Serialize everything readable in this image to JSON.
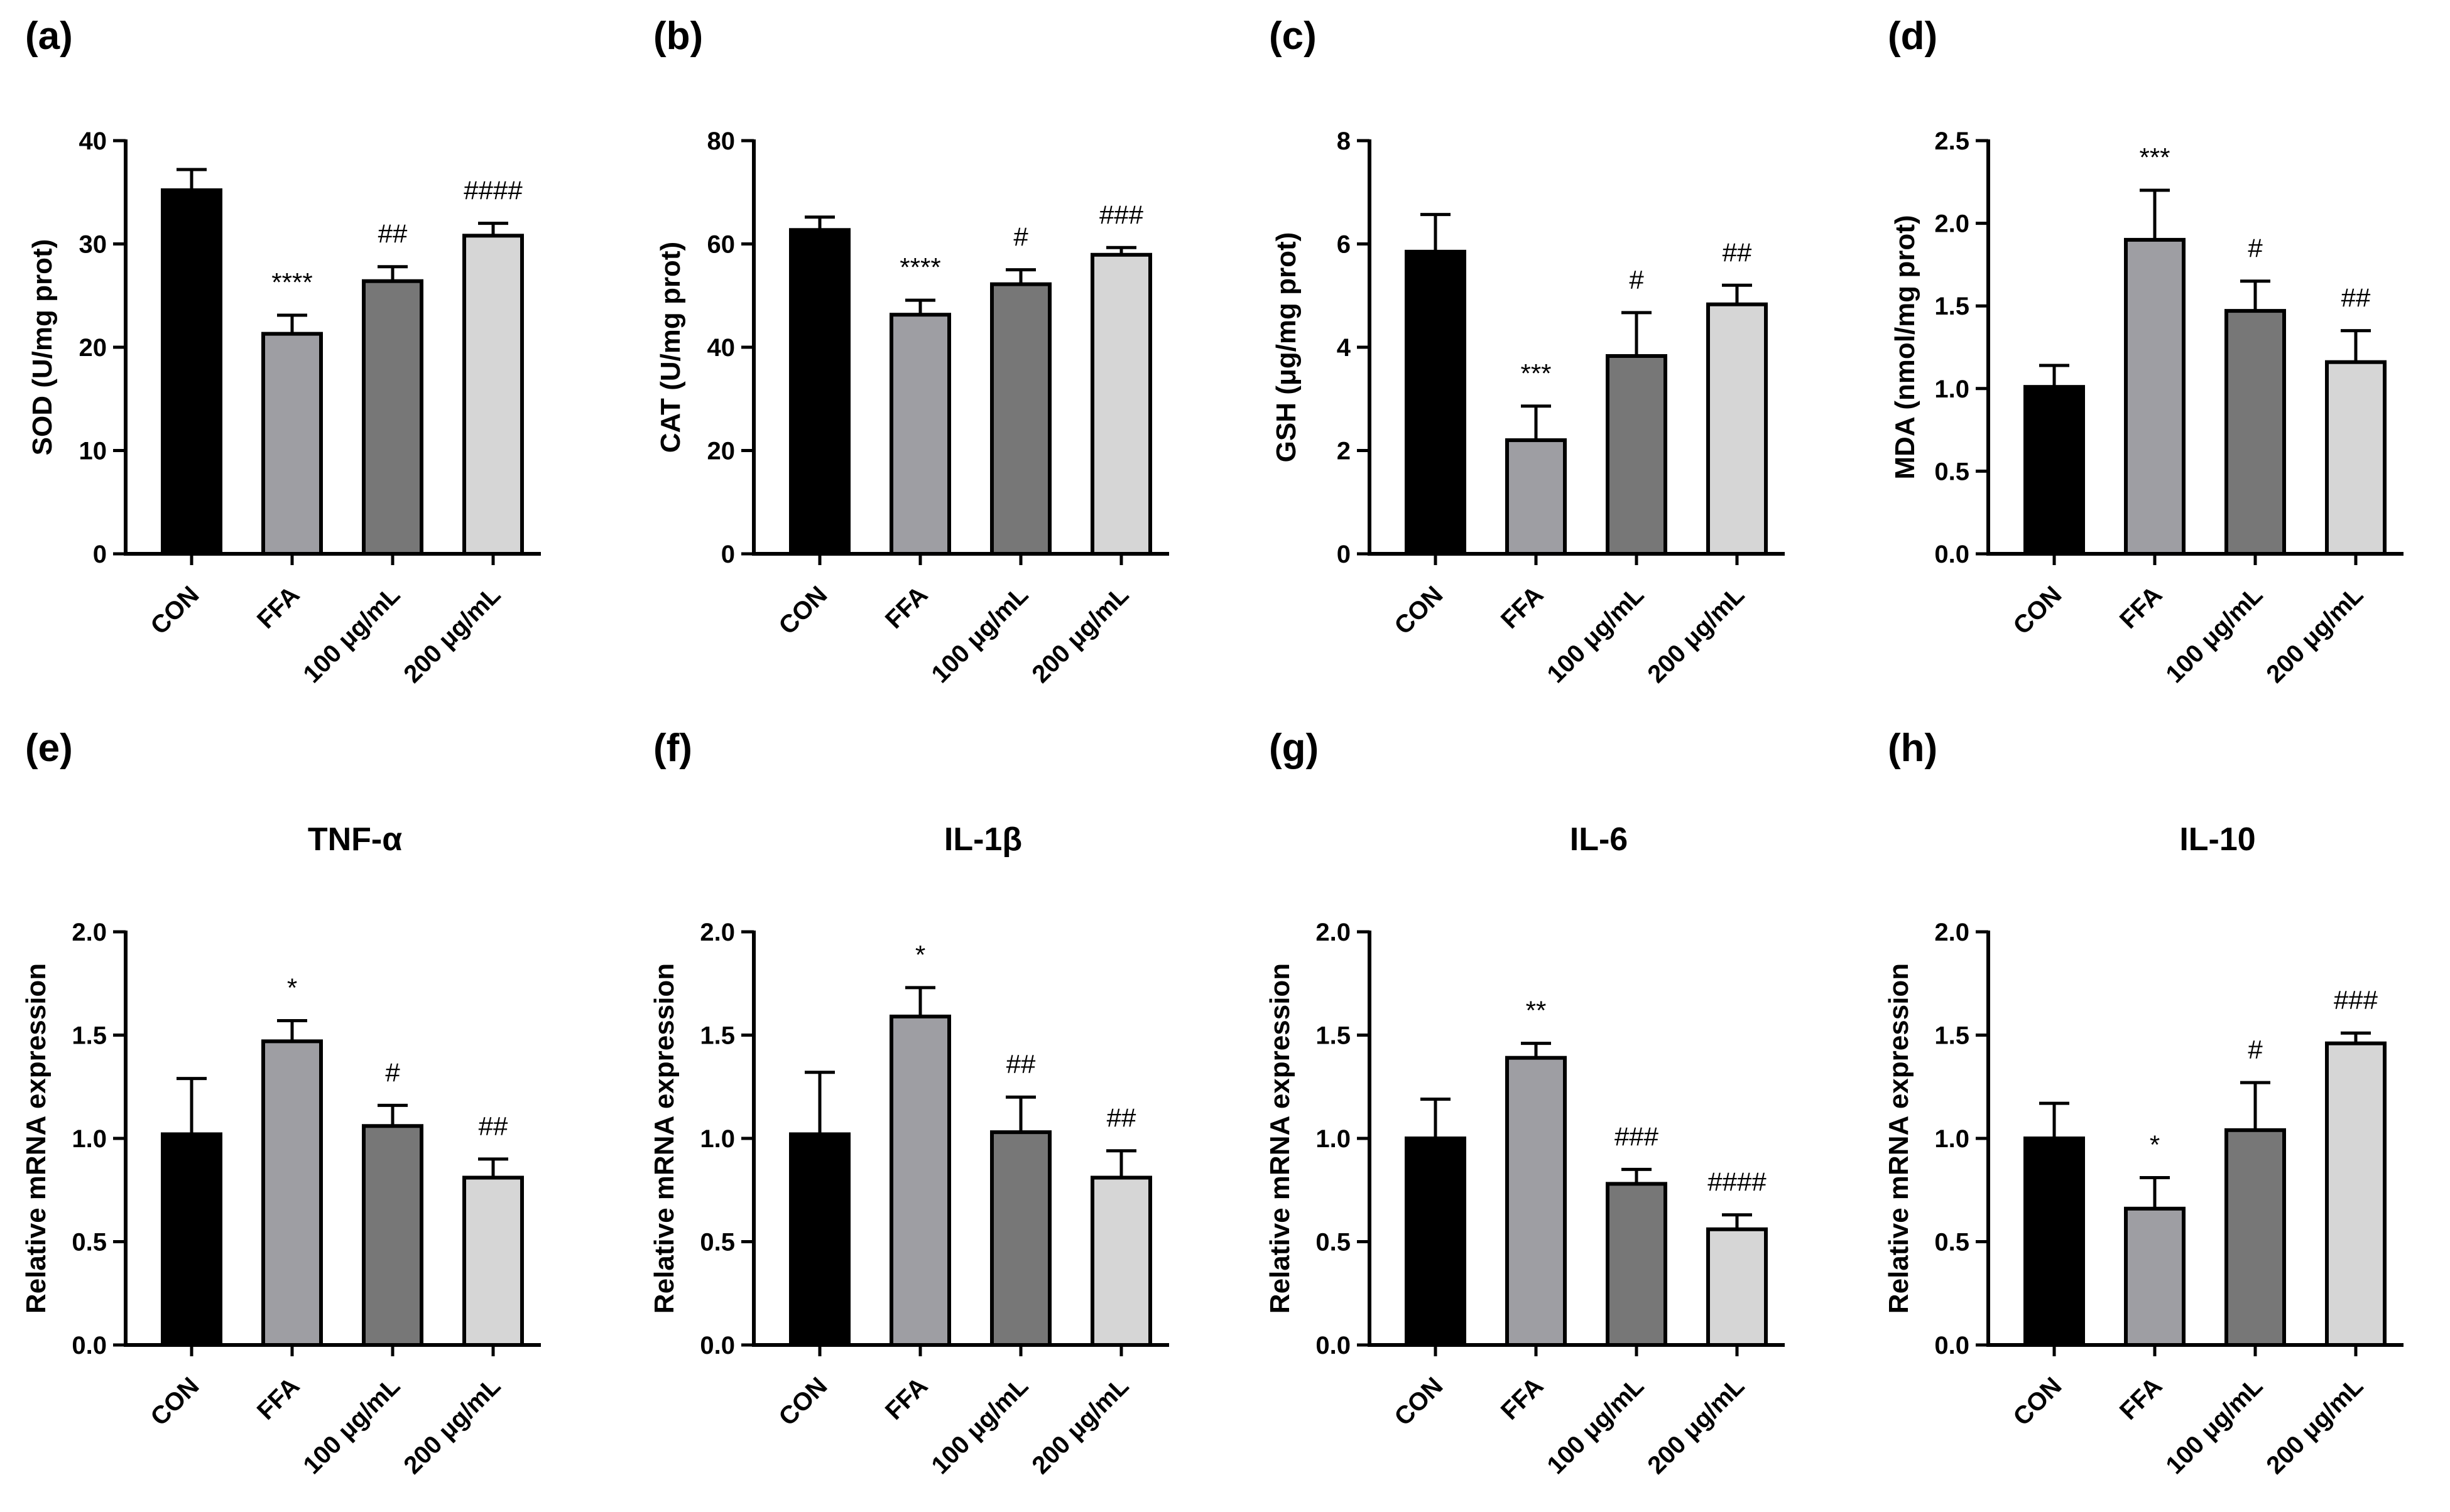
{
  "colors": {
    "CON": "#000000",
    "FFA": "#9e9ea3",
    "100 μg/mL": "#777777",
    "200 μg/mL": "#d6d6d6"
  },
  "chart_data": [
    {
      "panel": "(a)",
      "type": "bar",
      "title": "",
      "ylabel": "SOD (U/mg prot)",
      "ylim": [
        0,
        40
      ],
      "yticks": [
        "0",
        "10",
        "20",
        "30",
        "40"
      ],
      "categories": [
        "CON",
        "FFA",
        "100 μg/mL",
        "200 μg/mL"
      ],
      "values": [
        35.2,
        21.3,
        26.4,
        30.8
      ],
      "errors": [
        2.0,
        1.8,
        1.4,
        1.2
      ],
      "annotations": [
        "",
        "****",
        "##",
        "####"
      ]
    },
    {
      "panel": "(b)",
      "type": "bar",
      "title": "",
      "ylabel": "CAT (U/mg prot)",
      "ylim": [
        0,
        80
      ],
      "yticks": [
        "0",
        "20",
        "40",
        "60",
        "80"
      ],
      "categories": [
        "CON",
        "FFA",
        "100 μg/mL",
        "200 μg/mL"
      ],
      "values": [
        62.7,
        46.3,
        52.2,
        57.9
      ],
      "errors": [
        2.5,
        2.8,
        2.8,
        1.4
      ],
      "annotations": [
        "",
        "****",
        "#",
        "###"
      ]
    },
    {
      "panel": "(c)",
      "type": "bar",
      "title": "",
      "ylabel": "GSH (μg/mg prot)",
      "ylim": [
        0,
        8
      ],
      "yticks": [
        "0",
        "2",
        "4",
        "6",
        "8"
      ],
      "categories": [
        "CON",
        "FFA",
        "100 μg/mL",
        "200 μg/mL"
      ],
      "values": [
        5.85,
        2.2,
        3.83,
        4.83
      ],
      "errors": [
        0.72,
        0.66,
        0.84,
        0.37
      ],
      "annotations": [
        "",
        "***",
        "#",
        "##"
      ]
    },
    {
      "panel": "(d)",
      "type": "bar",
      "title": "",
      "ylabel": "MDA (nmol/mg prot)",
      "ylim": [
        0,
        2.5
      ],
      "yticks": [
        "0.0",
        "0.5",
        "1.0",
        "1.5",
        "2.0",
        "2.5"
      ],
      "categories": [
        "CON",
        "FFA",
        "100 μg/mL",
        "200 μg/mL"
      ],
      "values": [
        1.01,
        1.9,
        1.47,
        1.16
      ],
      "errors": [
        0.13,
        0.3,
        0.18,
        0.19
      ],
      "annotations": [
        "",
        "***",
        "#",
        "##"
      ]
    },
    {
      "panel": "(e)",
      "type": "bar",
      "title": "TNF-α",
      "ylabel": "Relative mRNA expression",
      "ylim": [
        0,
        2.0
      ],
      "yticks": [
        "0.0",
        "0.5",
        "1.0",
        "1.5",
        "2.0"
      ],
      "categories": [
        "CON",
        "FFA",
        "100 μg/mL",
        "200 μg/mL"
      ],
      "values": [
        1.02,
        1.47,
        1.06,
        0.81
      ],
      "errors": [
        0.27,
        0.1,
        0.1,
        0.09
      ],
      "annotations": [
        "",
        "*",
        "#",
        "##"
      ]
    },
    {
      "panel": "(f)",
      "type": "bar",
      "title": "IL-1β",
      "ylabel": "Relative mRNA expression",
      "ylim": [
        0,
        2.0
      ],
      "yticks": [
        "0.0",
        "0.5",
        "1.0",
        "1.5",
        "2.0"
      ],
      "categories": [
        "CON",
        "FFA",
        "100 μg/mL",
        "200 μg/mL"
      ],
      "values": [
        1.02,
        1.59,
        1.03,
        0.81
      ],
      "errors": [
        0.3,
        0.14,
        0.17,
        0.13
      ],
      "annotations": [
        "",
        "*",
        "##",
        "##"
      ]
    },
    {
      "panel": "(g)",
      "type": "bar",
      "title": "IL-6",
      "ylabel": "Relative mRNA expression",
      "ylim": [
        0,
        2.0
      ],
      "yticks": [
        "0.0",
        "0.5",
        "1.0",
        "1.5",
        "2.0"
      ],
      "categories": [
        "CON",
        "FFA",
        "100 μg/mL",
        "200 μg/mL"
      ],
      "values": [
        1.0,
        1.39,
        0.78,
        0.56
      ],
      "errors": [
        0.19,
        0.07,
        0.07,
        0.07
      ],
      "annotations": [
        "",
        "**",
        "###",
        "####"
      ]
    },
    {
      "panel": "(h)",
      "type": "bar",
      "title": "IL-10",
      "ylabel": "Relative mRNA expression",
      "ylim": [
        0,
        2.0
      ],
      "yticks": [
        "0.0",
        "0.5",
        "1.0",
        "1.5",
        "2.0"
      ],
      "categories": [
        "CON",
        "FFA",
        "100 μg/mL",
        "200 μg/mL"
      ],
      "values": [
        1.0,
        0.66,
        1.04,
        1.46
      ],
      "errors": [
        0.17,
        0.15,
        0.23,
        0.05
      ],
      "annotations": [
        "",
        "*",
        "#",
        "###"
      ]
    }
  ]
}
